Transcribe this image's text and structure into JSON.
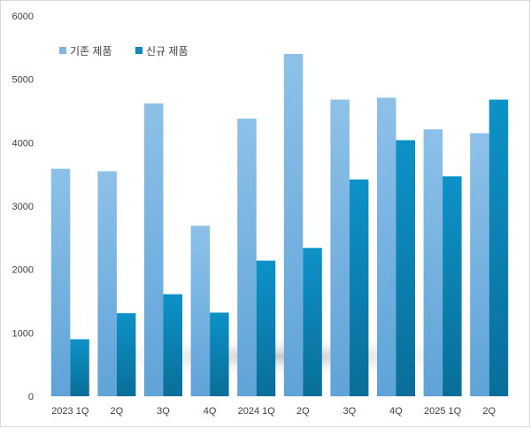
{
  "chart_data": {
    "type": "bar",
    "categories": [
      "2023 1Q",
      "2Q",
      "3Q",
      "4Q",
      "2024 1Q",
      "2Q",
      "3Q",
      "4Q",
      "2025 1Q",
      "2Q"
    ],
    "series": [
      {
        "name": "기존 제품",
        "values": [
          3590,
          3550,
          4620,
          2690,
          4380,
          5400,
          4680,
          4710,
          4210,
          4150
        ],
        "color": "#7fb6e2"
      },
      {
        "name": "신규 제품",
        "values": [
          900,
          1310,
          1610,
          1320,
          2140,
          2340,
          3420,
          4040,
          3470,
          4680
        ],
        "color": "#0f88bd"
      }
    ],
    "ylim": [
      0,
      6000
    ],
    "yticks": [
      0,
      1000,
      2000,
      3000,
      4000,
      5000,
      6000
    ],
    "grid": false,
    "legend_position": "top-left"
  }
}
